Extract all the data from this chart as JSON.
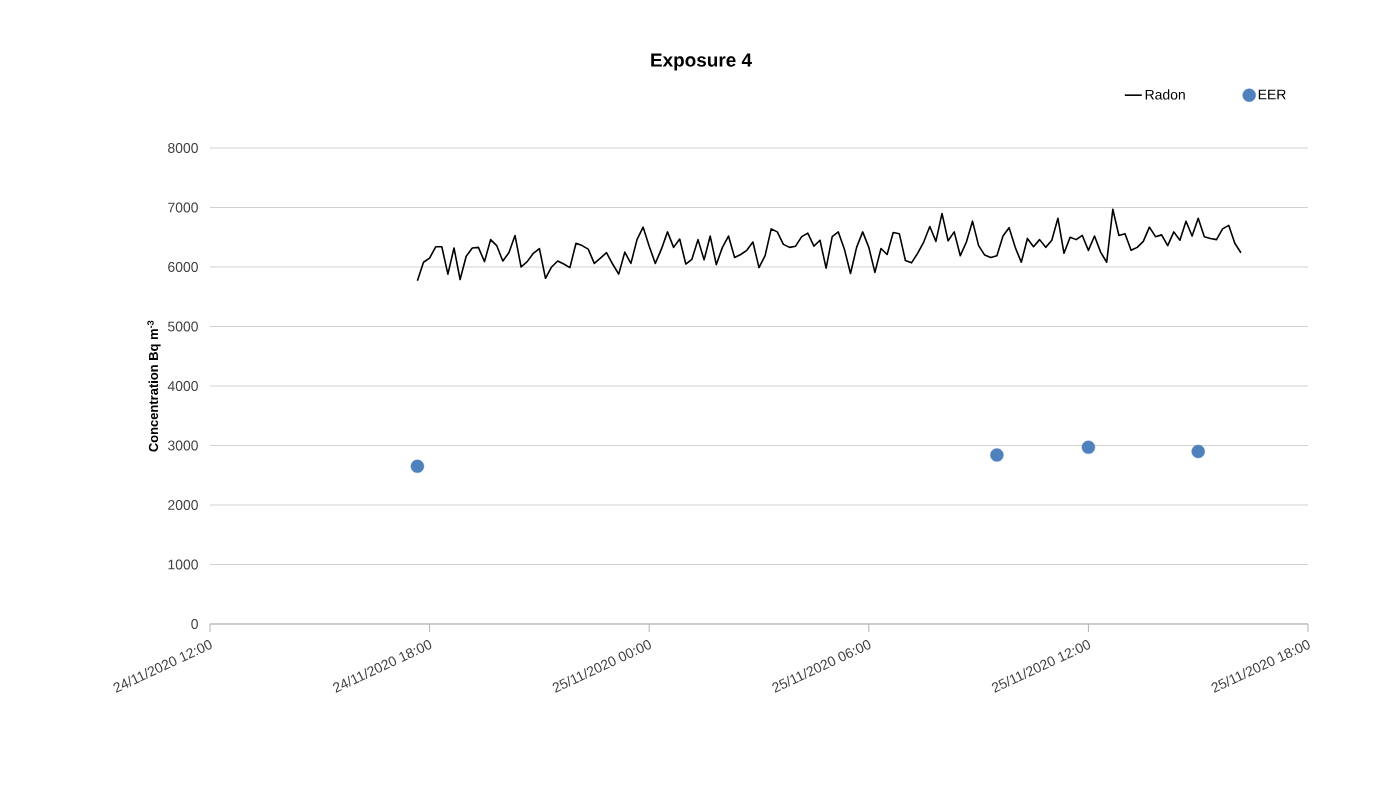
{
  "chart_data": {
    "type": "line",
    "title": "Exposure 4",
    "ylabel": "Concentration Bq m$^{-3}$",
    "xlim": [
      "2020-11-24T12:00",
      "2020-11-25T18:00"
    ],
    "xticks": [
      {
        "value": "2020-11-24T12:00",
        "label": "24/11/2020 12:00"
      },
      {
        "value": "2020-11-24T18:00",
        "label": "24/11/2020 18:00"
      },
      {
        "value": "2020-11-25T00:00",
        "label": "25/11/2020 00:00"
      },
      {
        "value": "2020-11-25T06:00",
        "label": "25/11/2020 06:00"
      },
      {
        "value": "2020-11-25T12:00",
        "label": "25/11/2020 12:00"
      },
      {
        "value": "2020-11-25T18:00",
        "label": "25/11/2020 18:00"
      }
    ],
    "ylim": [
      0,
      8000
    ],
    "yticks": [
      0,
      1000,
      2000,
      3000,
      4000,
      5000,
      6000,
      7000,
      8000
    ],
    "grid": "y",
    "legend": "top right",
    "series": [
      {
        "name": "Radon",
        "color": "#000000",
        "x": [
          "2020-11-24T17:40",
          "2020-11-24T17:50",
          "2020-11-24T18:00",
          "2020-11-24T18:10",
          "2020-11-24T18:20",
          "2020-11-24T18:30",
          "2020-11-24T18:40",
          "2020-11-24T18:50",
          "2020-11-24T19:00",
          "2020-11-24T19:10",
          "2020-11-24T19:20",
          "2020-11-24T19:30",
          "2020-11-24T19:40",
          "2020-11-24T19:50",
          "2020-11-24T20:00",
          "2020-11-24T20:10",
          "2020-11-24T20:20",
          "2020-11-24T20:30",
          "2020-11-24T20:40",
          "2020-11-24T20:50",
          "2020-11-24T21:00",
          "2020-11-24T21:10",
          "2020-11-24T21:20",
          "2020-11-24T21:30",
          "2020-11-24T21:40",
          "2020-11-24T21:50",
          "2020-11-24T22:00",
          "2020-11-24T22:10",
          "2020-11-24T22:20",
          "2020-11-24T22:30",
          "2020-11-24T22:40",
          "2020-11-24T22:50",
          "2020-11-24T23:00",
          "2020-11-24T23:10",
          "2020-11-24T23:20",
          "2020-11-24T23:30",
          "2020-11-24T23:40",
          "2020-11-24T23:50",
          "2020-11-25T00:00",
          "2020-11-25T00:10",
          "2020-11-25T00:20",
          "2020-11-25T00:30",
          "2020-11-25T00:40",
          "2020-11-25T00:50",
          "2020-11-25T01:00",
          "2020-11-25T01:10",
          "2020-11-25T01:20",
          "2020-11-25T01:30",
          "2020-11-25T01:40",
          "2020-11-25T01:50",
          "2020-11-25T02:00",
          "2020-11-25T02:10",
          "2020-11-25T02:20",
          "2020-11-25T02:30",
          "2020-11-25T02:40",
          "2020-11-25T02:50",
          "2020-11-25T03:00",
          "2020-11-25T03:10",
          "2020-11-25T03:20",
          "2020-11-25T03:30",
          "2020-11-25T03:40",
          "2020-11-25T03:50",
          "2020-11-25T04:00",
          "2020-11-25T04:10",
          "2020-11-25T04:20",
          "2020-11-25T04:30",
          "2020-11-25T04:40",
          "2020-11-25T04:50",
          "2020-11-25T05:00",
          "2020-11-25T05:10",
          "2020-11-25T05:20",
          "2020-11-25T05:30",
          "2020-11-25T05:40",
          "2020-11-25T05:50",
          "2020-11-25T06:00",
          "2020-11-25T06:10",
          "2020-11-25T06:20",
          "2020-11-25T06:30",
          "2020-11-25T06:40",
          "2020-11-25T06:50",
          "2020-11-25T07:00",
          "2020-11-25T07:10",
          "2020-11-25T07:20",
          "2020-11-25T07:30",
          "2020-11-25T07:40",
          "2020-11-25T07:50",
          "2020-11-25T08:00",
          "2020-11-25T08:10",
          "2020-11-25T08:20",
          "2020-11-25T08:30",
          "2020-11-25T08:40",
          "2020-11-25T08:50",
          "2020-11-25T09:00",
          "2020-11-25T09:10",
          "2020-11-25T09:20",
          "2020-11-25T09:30",
          "2020-11-25T09:40",
          "2020-11-25T09:50",
          "2020-11-25T10:00",
          "2020-11-25T10:10",
          "2020-11-25T10:20",
          "2020-11-25T10:30",
          "2020-11-25T10:40",
          "2020-11-25T10:50",
          "2020-11-25T11:00",
          "2020-11-25T11:10",
          "2020-11-25T11:20",
          "2020-11-25T11:30",
          "2020-11-25T11:40",
          "2020-11-25T11:50",
          "2020-11-25T12:00",
          "2020-11-25T12:10",
          "2020-11-25T12:20",
          "2020-11-25T12:30",
          "2020-11-25T12:40",
          "2020-11-25T12:50",
          "2020-11-25T13:00",
          "2020-11-25T13:10",
          "2020-11-25T13:20",
          "2020-11-25T13:30",
          "2020-11-25T13:40",
          "2020-11-25T13:50",
          "2020-11-25T14:00",
          "2020-11-25T14:10",
          "2020-11-25T14:20",
          "2020-11-25T14:30",
          "2020-11-25T14:40",
          "2020-11-25T14:50",
          "2020-11-25T15:00",
          "2020-11-25T15:10",
          "2020-11-25T15:20",
          "2020-11-25T15:30",
          "2020-11-25T15:40",
          "2020-11-25T15:50",
          "2020-11-25T16:00",
          "2020-11-25T16:10"
        ],
        "values": [
          5770,
          6080,
          6150,
          6340,
          6340,
          5880,
          6320,
          5790,
          6180,
          6320,
          6330,
          6090,
          6460,
          6360,
          6100,
          6240,
          6530,
          6000,
          6090,
          6230,
          6310,
          5810,
          6000,
          6100,
          6050,
          5990,
          6400,
          6360,
          6300,
          6060,
          6150,
          6240,
          6050,
          5880,
          6250,
          6060,
          6460,
          6670,
          6350,
          6060,
          6300,
          6590,
          6330,
          6470,
          6050,
          6130,
          6460,
          6120,
          6520,
          6040,
          6330,
          6520,
          6160,
          6210,
          6280,
          6420,
          5990,
          6190,
          6640,
          6590,
          6380,
          6330,
          6350,
          6510,
          6570,
          6350,
          6450,
          5980,
          6510,
          6590,
          6300,
          5890,
          6330,
          6590,
          6330,
          5910,
          6310,
          6210,
          6580,
          6560,
          6110,
          6070,
          6230,
          6420,
          6680,
          6430,
          6900,
          6440,
          6590,
          6190,
          6420,
          6770,
          6360,
          6200,
          6160,
          6190,
          6520,
          6660,
          6330,
          6080,
          6480,
          6340,
          6460,
          6330,
          6450,
          6820,
          6230,
          6500,
          6460,
          6530,
          6280,
          6520,
          6250,
          6080,
          6970,
          6530,
          6560,
          6280,
          6330,
          6430,
          6670,
          6510,
          6540,
          6360,
          6590,
          6450,
          6770,
          6520,
          6820,
          6510,
          6480,
          6460,
          6640,
          6700,
          6400,
          6240
        ]
      },
      {
        "name": "EER",
        "type": "scatter",
        "marker": "circle",
        "color": "#4f81bd",
        "x": [
          "2020-11-24T17:40",
          "2020-11-25T09:30",
          "2020-11-25T12:00",
          "2020-11-25T15:00"
        ],
        "values": [
          2650,
          2840,
          2970,
          2900
        ]
      }
    ]
  }
}
